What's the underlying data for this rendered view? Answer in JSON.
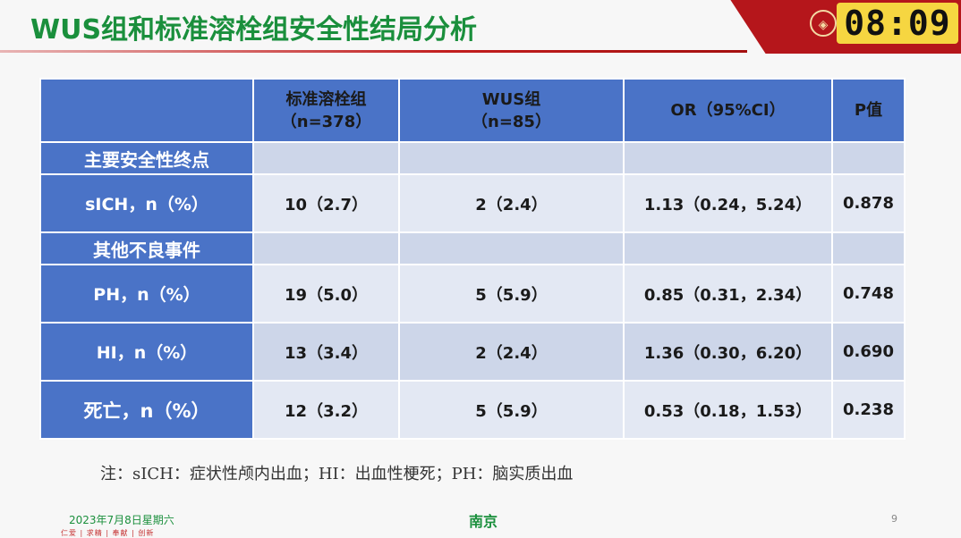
{
  "title": "WUS组和标准溶栓组安全性结局分析",
  "clock": "08:09",
  "seal_icon": "shield-badge-icon",
  "table": {
    "headers": [
      {
        "line1": "",
        "line2": ""
      },
      {
        "line1": "标准溶栓组",
        "line2": "（n=378）"
      },
      {
        "line1": "WUS组",
        "line2": "（n=85）"
      },
      {
        "line1": "OR（95%CI）",
        "line2": ""
      },
      {
        "line1": "P值",
        "line2": ""
      }
    ],
    "section1": "主要安全性终点",
    "section2": "其他不良事件",
    "rows": [
      {
        "label": "sICH，n（%）",
        "standard": "10（2.7）",
        "wus": "2（2.4）",
        "or": "1.13（0.24，5.24）",
        "p": "0.878"
      },
      {
        "label": "PH，n（%）",
        "standard": "19（5.0）",
        "wus": "5（5.9）",
        "or": "0.85（0.31，2.34）",
        "p": "0.748"
      },
      {
        "label": "HI，n（%）",
        "standard": "13（3.4）",
        "wus": "2（2.4）",
        "or": "1.36（0.30，6.20）",
        "p": "0.690"
      },
      {
        "label": "死亡，n（%）",
        "standard": "12（3.2）",
        "wus": "5（5.9）",
        "or": "0.53（0.18，1.53）",
        "p": "0.238"
      }
    ]
  },
  "footnote": "注：sICH：症状性颅内出血；HI：出血性梗死；PH：脑实质出血",
  "footer": {
    "date": "2023年7月8日星期六",
    "motto": "仁爱 | 求精 | 奉献 | 创新",
    "city": "南京",
    "page": "9"
  },
  "colors": {
    "title_green": "#1a8f3c",
    "header_blue": "#4a73c7",
    "row_light": "#e3e8f3",
    "row_dark": "#cdd6e9",
    "banner_red": "#b5161b",
    "clock_yellow": "#f6d641"
  }
}
